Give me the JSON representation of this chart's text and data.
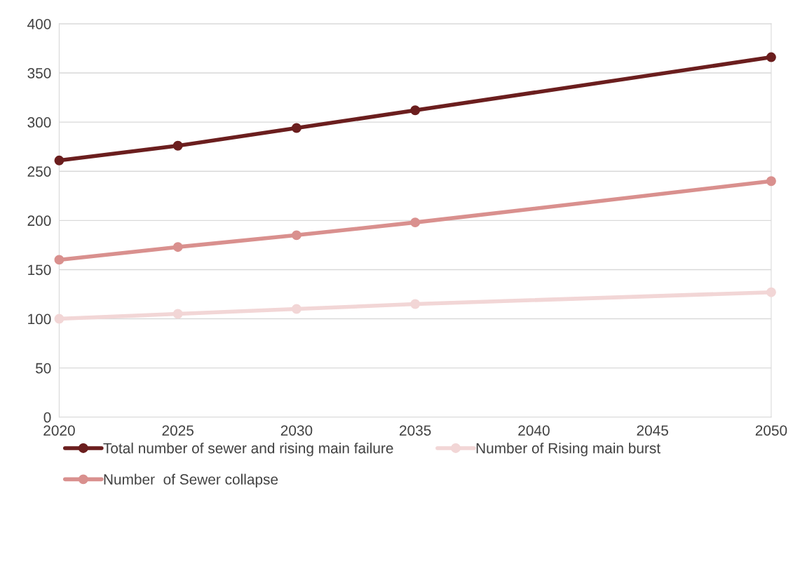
{
  "chart_data": {
    "type": "line",
    "x": [
      2020,
      2025,
      2030,
      2035,
      2050
    ],
    "series": [
      {
        "name": "Total number of sewer and rising main failure",
        "color": "#6b1e1e",
        "values": [
          261,
          276,
          294,
          312,
          366
        ]
      },
      {
        "name": "Number  of Sewer collapse",
        "color": "#d9908e",
        "values": [
          160,
          173,
          185,
          198,
          240
        ]
      },
      {
        "name": "Number of Rising main burst",
        "color": "#f2d6d6",
        "values": [
          100,
          105,
          110,
          115,
          127
        ]
      }
    ],
    "xlim": [
      2020,
      2050
    ],
    "xticks": [
      2020,
      2025,
      2030,
      2035,
      2040,
      2045,
      2050
    ],
    "ylim": [
      0,
      400
    ],
    "yticks": [
      0,
      50,
      100,
      150,
      200,
      250,
      300,
      350,
      400
    ],
    "grid": "y",
    "legend": "bottom",
    "marker": "circle",
    "line_style": "solid"
  }
}
